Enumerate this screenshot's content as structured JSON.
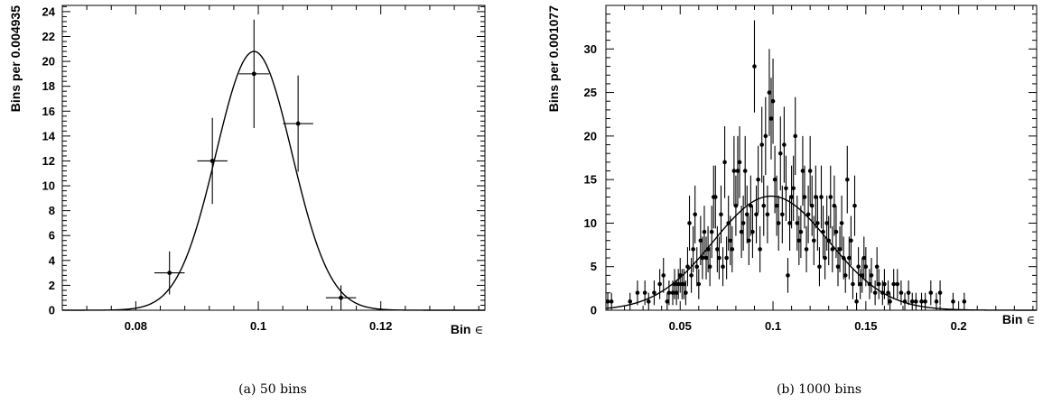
{
  "chart_data": [
    {
      "type": "scatter",
      "caption": "(a)  50 bins",
      "xlabel": "Bin",
      "xlabel_symbol": "∈",
      "ylabel": "Bins per 0.004935",
      "xlim": [
        0.068,
        0.137
      ],
      "ylim": [
        0,
        24.5
      ],
      "x_ticks": [
        0.08,
        0.1,
        0.12
      ],
      "x_tick_labels": [
        "0.08",
        "0.1",
        "0.12"
      ],
      "y_ticks": [
        0,
        2,
        4,
        6,
        8,
        10,
        12,
        14,
        16,
        18,
        20,
        22,
        24
      ],
      "y_tick_labels": [
        "0",
        "2",
        "4",
        "6",
        "8",
        "10",
        "12",
        "14",
        "16",
        "18",
        "20",
        "22",
        "24"
      ],
      "bin_width": 0.004935,
      "points": [
        {
          "x": 0.0855,
          "y": 3,
          "err": 1.73
        },
        {
          "x": 0.0925,
          "y": 12,
          "err": 3.46
        },
        {
          "x": 0.0993,
          "y": 19,
          "err": 4.36
        },
        {
          "x": 0.1065,
          "y": 15,
          "err": 3.87
        },
        {
          "x": 0.1135,
          "y": 1,
          "err": 1.0
        }
      ],
      "fit": {
        "amplitude": 20.8,
        "mean": 0.0993,
        "sigma": 0.0062
      },
      "grid": false,
      "legend": "none"
    },
    {
      "type": "scatter",
      "caption": "(b)  1000 bins",
      "xlabel": "Bin",
      "xlabel_symbol": "∈",
      "ylabel": "Bins per 0.001077",
      "xlim": [
        0.01,
        0.242
      ],
      "ylim": [
        0,
        35
      ],
      "x_ticks": [
        0.05,
        0.1,
        0.15,
        0.2
      ],
      "x_tick_labels": [
        "0.05",
        "0.1",
        "0.15",
        "0.2"
      ],
      "y_ticks": [
        0,
        5,
        10,
        15,
        20,
        25,
        30
      ],
      "y_tick_labels": [
        "0",
        "5",
        "10",
        "15",
        "20",
        "25",
        "30"
      ],
      "bin_width": 0.001077,
      "points": [
        {
          "x": 0.011,
          "y": 1
        },
        {
          "x": 0.013,
          "y": 1
        },
        {
          "x": 0.023,
          "y": 1
        },
        {
          "x": 0.027,
          "y": 2
        },
        {
          "x": 0.031,
          "y": 2
        },
        {
          "x": 0.033,
          "y": 1
        },
        {
          "x": 0.036,
          "y": 2
        },
        {
          "x": 0.039,
          "y": 3
        },
        {
          "x": 0.041,
          "y": 4
        },
        {
          "x": 0.043,
          "y": 1
        },
        {
          "x": 0.044,
          "y": 2
        },
        {
          "x": 0.046,
          "y": 2
        },
        {
          "x": 0.047,
          "y": 3
        },
        {
          "x": 0.048,
          "y": 2
        },
        {
          "x": 0.049,
          "y": 3
        },
        {
          "x": 0.05,
          "y": 4
        },
        {
          "x": 0.051,
          "y": 3
        },
        {
          "x": 0.052,
          "y": 3
        },
        {
          "x": 0.053,
          "y": 2
        },
        {
          "x": 0.054,
          "y": 5
        },
        {
          "x": 0.055,
          "y": 10
        },
        {
          "x": 0.056,
          "y": 4
        },
        {
          "x": 0.057,
          "y": 7
        },
        {
          "x": 0.058,
          "y": 11
        },
        {
          "x": 0.059,
          "y": 5
        },
        {
          "x": 0.06,
          "y": 3
        },
        {
          "x": 0.061,
          "y": 8
        },
        {
          "x": 0.062,
          "y": 6
        },
        {
          "x": 0.063,
          "y": 9
        },
        {
          "x": 0.064,
          "y": 6
        },
        {
          "x": 0.065,
          "y": 7
        },
        {
          "x": 0.066,
          "y": 5
        },
        {
          "x": 0.067,
          "y": 9
        },
        {
          "x": 0.068,
          "y": 13
        },
        {
          "x": 0.069,
          "y": 13
        },
        {
          "x": 0.07,
          "y": 7
        },
        {
          "x": 0.071,
          "y": 6
        },
        {
          "x": 0.072,
          "y": 11
        },
        {
          "x": 0.073,
          "y": 5
        },
        {
          "x": 0.074,
          "y": 17
        },
        {
          "x": 0.075,
          "y": 6
        },
        {
          "x": 0.076,
          "y": 10
        },
        {
          "x": 0.077,
          "y": 8
        },
        {
          "x": 0.078,
          "y": 7
        },
        {
          "x": 0.079,
          "y": 16
        },
        {
          "x": 0.08,
          "y": 12
        },
        {
          "x": 0.081,
          "y": 16
        },
        {
          "x": 0.082,
          "y": 17
        },
        {
          "x": 0.083,
          "y": 9
        },
        {
          "x": 0.084,
          "y": 10
        },
        {
          "x": 0.085,
          "y": 16
        },
        {
          "x": 0.086,
          "y": 11
        },
        {
          "x": 0.087,
          "y": 8
        },
        {
          "x": 0.088,
          "y": 12
        },
        {
          "x": 0.089,
          "y": 9
        },
        {
          "x": 0.09,
          "y": 28
        },
        {
          "x": 0.091,
          "y": 11
        },
        {
          "x": 0.092,
          "y": 15
        },
        {
          "x": 0.093,
          "y": 7
        },
        {
          "x": 0.094,
          "y": 19
        },
        {
          "x": 0.095,
          "y": 12
        },
        {
          "x": 0.096,
          "y": 20
        },
        {
          "x": 0.097,
          "y": 11
        },
        {
          "x": 0.098,
          "y": 25
        },
        {
          "x": 0.099,
          "y": 22
        },
        {
          "x": 0.1,
          "y": 24
        },
        {
          "x": 0.101,
          "y": 15
        },
        {
          "x": 0.102,
          "y": 12
        },
        {
          "x": 0.103,
          "y": 10
        },
        {
          "x": 0.104,
          "y": 18
        },
        {
          "x": 0.105,
          "y": 11
        },
        {
          "x": 0.106,
          "y": 19
        },
        {
          "x": 0.107,
          "y": 14
        },
        {
          "x": 0.108,
          "y": 4
        },
        {
          "x": 0.109,
          "y": 10
        },
        {
          "x": 0.11,
          "y": 13
        },
        {
          "x": 0.111,
          "y": 14
        },
        {
          "x": 0.112,
          "y": 20
        },
        {
          "x": 0.113,
          "y": 10
        },
        {
          "x": 0.114,
          "y": 8
        },
        {
          "x": 0.115,
          "y": 9
        },
        {
          "x": 0.116,
          "y": 16
        },
        {
          "x": 0.117,
          "y": 13
        },
        {
          "x": 0.118,
          "y": 7
        },
        {
          "x": 0.119,
          "y": 11
        },
        {
          "x": 0.12,
          "y": 16
        },
        {
          "x": 0.121,
          "y": 12
        },
        {
          "x": 0.122,
          "y": 8
        },
        {
          "x": 0.123,
          "y": 13
        },
        {
          "x": 0.124,
          "y": 10
        },
        {
          "x": 0.125,
          "y": 5
        },
        {
          "x": 0.126,
          "y": 13
        },
        {
          "x": 0.127,
          "y": 9
        },
        {
          "x": 0.128,
          "y": 6
        },
        {
          "x": 0.129,
          "y": 10
        },
        {
          "x": 0.13,
          "y": 8
        },
        {
          "x": 0.131,
          "y": 13
        },
        {
          "x": 0.132,
          "y": 7
        },
        {
          "x": 0.133,
          "y": 12
        },
        {
          "x": 0.134,
          "y": 9
        },
        {
          "x": 0.135,
          "y": 5
        },
        {
          "x": 0.136,
          "y": 7
        },
        {
          "x": 0.137,
          "y": 10
        },
        {
          "x": 0.138,
          "y": 6
        },
        {
          "x": 0.139,
          "y": 4
        },
        {
          "x": 0.14,
          "y": 15
        },
        {
          "x": 0.141,
          "y": 6
        },
        {
          "x": 0.142,
          "y": 8
        },
        {
          "x": 0.143,
          "y": 3
        },
        {
          "x": 0.144,
          "y": 12
        },
        {
          "x": 0.145,
          "y": 1
        },
        {
          "x": 0.146,
          "y": 5
        },
        {
          "x": 0.147,
          "y": 3
        },
        {
          "x": 0.148,
          "y": 4
        },
        {
          "x": 0.149,
          "y": 6
        },
        {
          "x": 0.15,
          "y": 5
        },
        {
          "x": 0.152,
          "y": 3
        },
        {
          "x": 0.153,
          "y": 4
        },
        {
          "x": 0.155,
          "y": 2
        },
        {
          "x": 0.156,
          "y": 5
        },
        {
          "x": 0.157,
          "y": 3
        },
        {
          "x": 0.159,
          "y": 2
        },
        {
          "x": 0.16,
          "y": 3
        },
        {
          "x": 0.162,
          "y": 2
        },
        {
          "x": 0.163,
          "y": 1
        },
        {
          "x": 0.165,
          "y": 3
        },
        {
          "x": 0.167,
          "y": 3
        },
        {
          "x": 0.169,
          "y": 2
        },
        {
          "x": 0.171,
          "y": 1
        },
        {
          "x": 0.173,
          "y": 2
        },
        {
          "x": 0.175,
          "y": 1
        },
        {
          "x": 0.177,
          "y": 1
        },
        {
          "x": 0.18,
          "y": 1
        },
        {
          "x": 0.182,
          "y": 1
        },
        {
          "x": 0.185,
          "y": 2
        },
        {
          "x": 0.188,
          "y": 1
        },
        {
          "x": 0.19,
          "y": 2
        },
        {
          "x": 0.197,
          "y": 1
        },
        {
          "x": 0.203,
          "y": 1
        }
      ],
      "fit": {
        "amplitude": 13.1,
        "mean": 0.099,
        "sigma": 0.031
      },
      "grid": false,
      "legend": "none"
    }
  ]
}
